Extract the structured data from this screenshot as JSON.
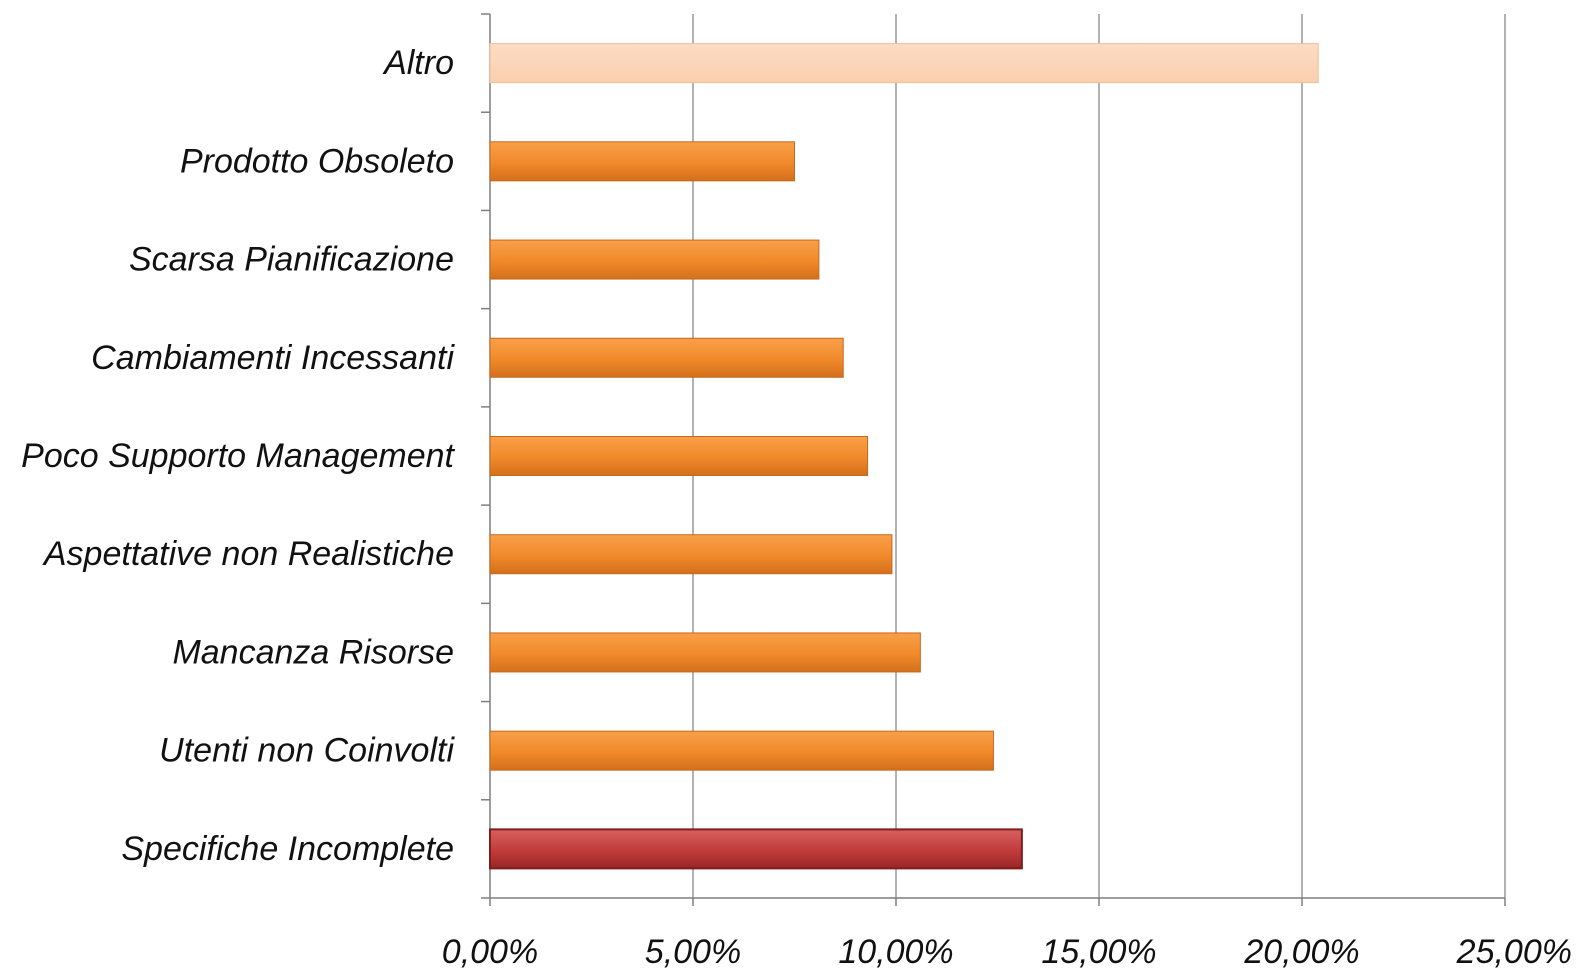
{
  "chart_data": {
    "type": "bar",
    "orientation": "horizontal",
    "title": "",
    "xlabel": "",
    "ylabel": "",
    "categories": [
      "Specifiche Incomplete",
      "Utenti non Coinvolti",
      "Mancanza Risorse",
      "Aspettative non Realistiche",
      "Poco Supporto Management",
      "Cambiamenti Incessanti",
      "Scarsa Pianificazione",
      "Prodotto Obsoleto",
      "Altro"
    ],
    "values": [
      13.1,
      12.4,
      10.6,
      9.9,
      9.3,
      8.7,
      8.1,
      7.5,
      20.4
    ],
    "xlim": [
      0,
      25
    ],
    "xticks": [
      0,
      5,
      10,
      15,
      20,
      25
    ],
    "xtick_labels": [
      "0,00%",
      "5,00%",
      "10,00%",
      "15,00%",
      "20,00%",
      "25,00%"
    ],
    "grid": "vertical",
    "legend": "none",
    "colors": {
      "default_bar": "#f08a2a",
      "highlight_bar": "#c23b3b",
      "altro_bar": "#fbd3b5",
      "gridline": "#7f7f7f",
      "axis": "#7f7f7f"
    },
    "bar_styles": [
      "highlight",
      "default",
      "default",
      "default",
      "default",
      "default",
      "default",
      "default",
      "altro"
    ]
  }
}
